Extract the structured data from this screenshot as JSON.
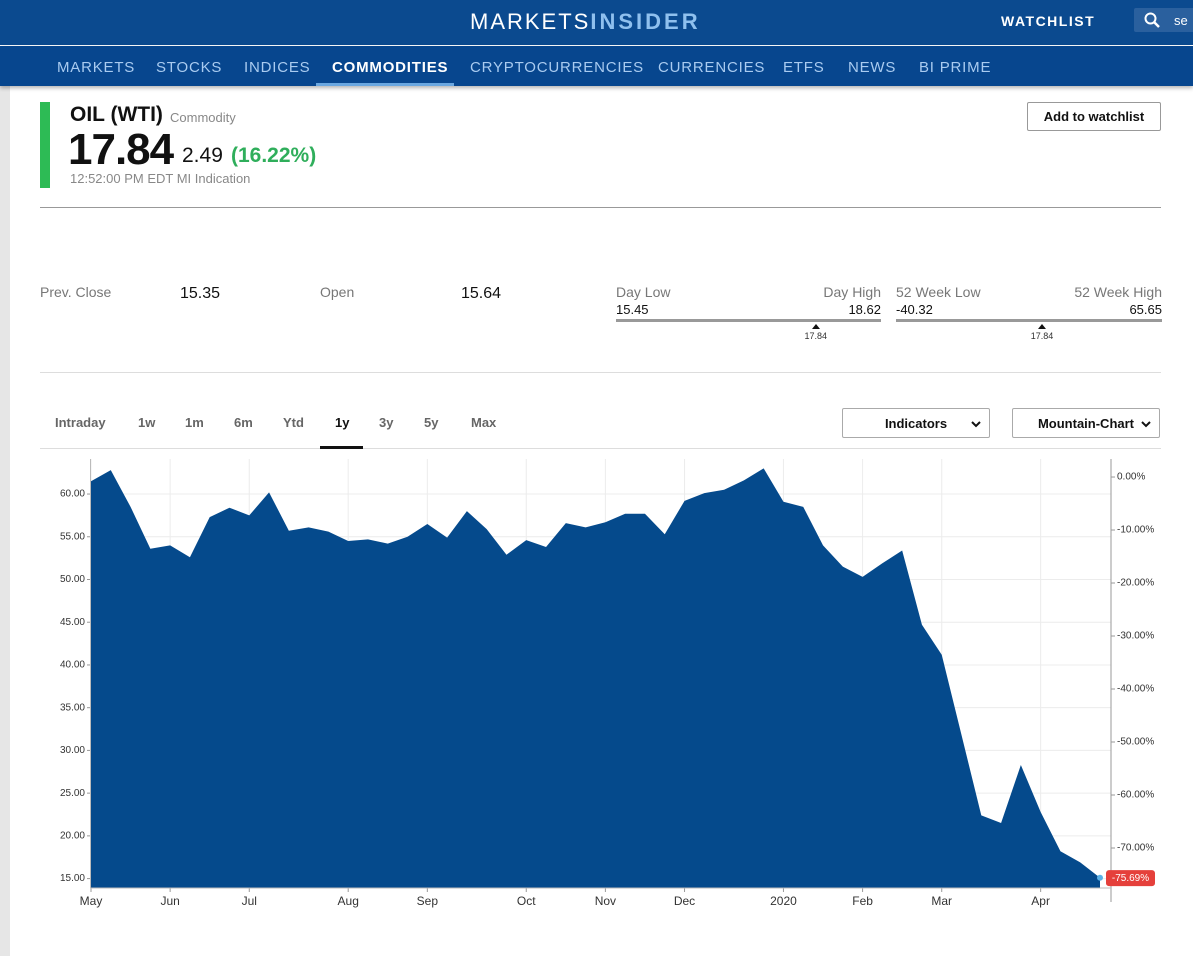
{
  "header": {
    "logo_left": "MARKETS",
    "logo_right": "INSIDER",
    "watchlist": "WATCHLIST",
    "search": "se"
  },
  "nav": [
    {
      "label": "MARKETS"
    },
    {
      "label": "STOCKS"
    },
    {
      "label": "INDICES"
    },
    {
      "label": "COMMODITIES",
      "active": true
    },
    {
      "label": "CRYPTOCURRENCIES"
    },
    {
      "label": "CURRENCIES"
    },
    {
      "label": "ETFS"
    },
    {
      "label": "NEWS"
    },
    {
      "label": "BI PRIME"
    }
  ],
  "quote": {
    "name": "OIL (WTI)",
    "kind": "Commodity",
    "price": 17.84,
    "change": 2.49,
    "change_percent": "(16.22%)",
    "time": "12:52:00 PM EDT MI Indication",
    "button": "Add to watchlist"
  },
  "stats": {
    "prev_close": {
      "label": "Prev. Close",
      "value": 15.35
    },
    "open": {
      "label": "Open",
      "value": 15.64
    },
    "day_range": {
      "low_label": "Day Low",
      "high_label": "Day High",
      "low": 15.45,
      "high": 18.62,
      "current": 17.84
    },
    "week52_range": {
      "low_label": "52 Week Low",
      "high_label": "52 Week High",
      "low": -40.32,
      "high": 65.65,
      "current": 17.84
    }
  },
  "timeframes": [
    {
      "label": "Intraday"
    },
    {
      "label": "1w"
    },
    {
      "label": "1m"
    },
    {
      "label": "6m"
    },
    {
      "label": "Ytd"
    },
    {
      "label": "1y",
      "active": true
    },
    {
      "label": "3y"
    },
    {
      "label": "5y"
    },
    {
      "label": "Max"
    }
  ],
  "dropdowns": [
    "Indicators",
    "Mountain-Chart"
  ],
  "chart_data": {
    "type": "area",
    "color": "#054a8c",
    "grid": true,
    "categories": [
      "May",
      null,
      null,
      null,
      "Jun",
      null,
      null,
      null,
      "Jul",
      null,
      null,
      null,
      null,
      "Aug",
      null,
      null,
      null,
      "Sep",
      null,
      null,
      null,
      null,
      "Oct",
      null,
      null,
      null,
      "Nov",
      null,
      null,
      null,
      "Dec",
      null,
      null,
      null,
      null,
      "2020",
      null,
      null,
      null,
      "Feb",
      null,
      null,
      null,
      "Mar",
      null,
      null,
      null,
      null,
      "Apr",
      null,
      null,
      null
    ],
    "values": [
      61.5,
      62.8,
      58.5,
      53.6,
      54.0,
      52.6,
      57.3,
      58.4,
      57.5,
      60.2,
      55.7,
      56.1,
      55.6,
      54.5,
      54.7,
      54.2,
      55.0,
      56.5,
      54.9,
      58.0,
      55.9,
      52.9,
      54.6,
      53.8,
      56.6,
      56.1,
      56.7,
      57.7,
      57.7,
      55.3,
      59.2,
      60.1,
      60.5,
      61.6,
      63.0,
      59.1,
      58.5,
      54.0,
      51.5,
      50.3,
      51.9,
      53.4,
      44.7,
      41.2,
      31.8,
      22.4,
      21.5,
      28.3,
      22.8,
      18.2,
      16.9,
      15.1
    ],
    "ylim": [
      13.9,
      64.1
    ],
    "yticks": [
      {
        "value": 15,
        "label": "15.00"
      },
      {
        "value": 20,
        "label": "20.00"
      },
      {
        "value": 25,
        "label": "25.00"
      },
      {
        "value": 30,
        "label": "30.00"
      },
      {
        "value": 35,
        "label": "35.00"
      },
      {
        "value": 40,
        "label": "40.00"
      },
      {
        "value": 45,
        "label": "45.00"
      },
      {
        "value": 50,
        "label": "50.00"
      },
      {
        "value": 55,
        "label": "55.00"
      },
      {
        "value": 60,
        "label": "60.00"
      }
    ],
    "y2lim": [
      -77.55,
      3.4
    ],
    "y2ticks": [
      {
        "value": 0,
        "label": "0.00%"
      },
      {
        "value": -10,
        "label": "-10.00%"
      },
      {
        "value": -20,
        "label": "-20.00%"
      },
      {
        "value": -30,
        "label": "-30.00%"
      },
      {
        "value": -40,
        "label": "-40.00%"
      },
      {
        "value": -50,
        "label": "-50.00%"
      },
      {
        "value": -60,
        "label": "-60.00%"
      },
      {
        "value": -70,
        "label": "-70.00%"
      }
    ],
    "current_label": {
      "value": -75.69,
      "label": "-75.69%"
    }
  }
}
